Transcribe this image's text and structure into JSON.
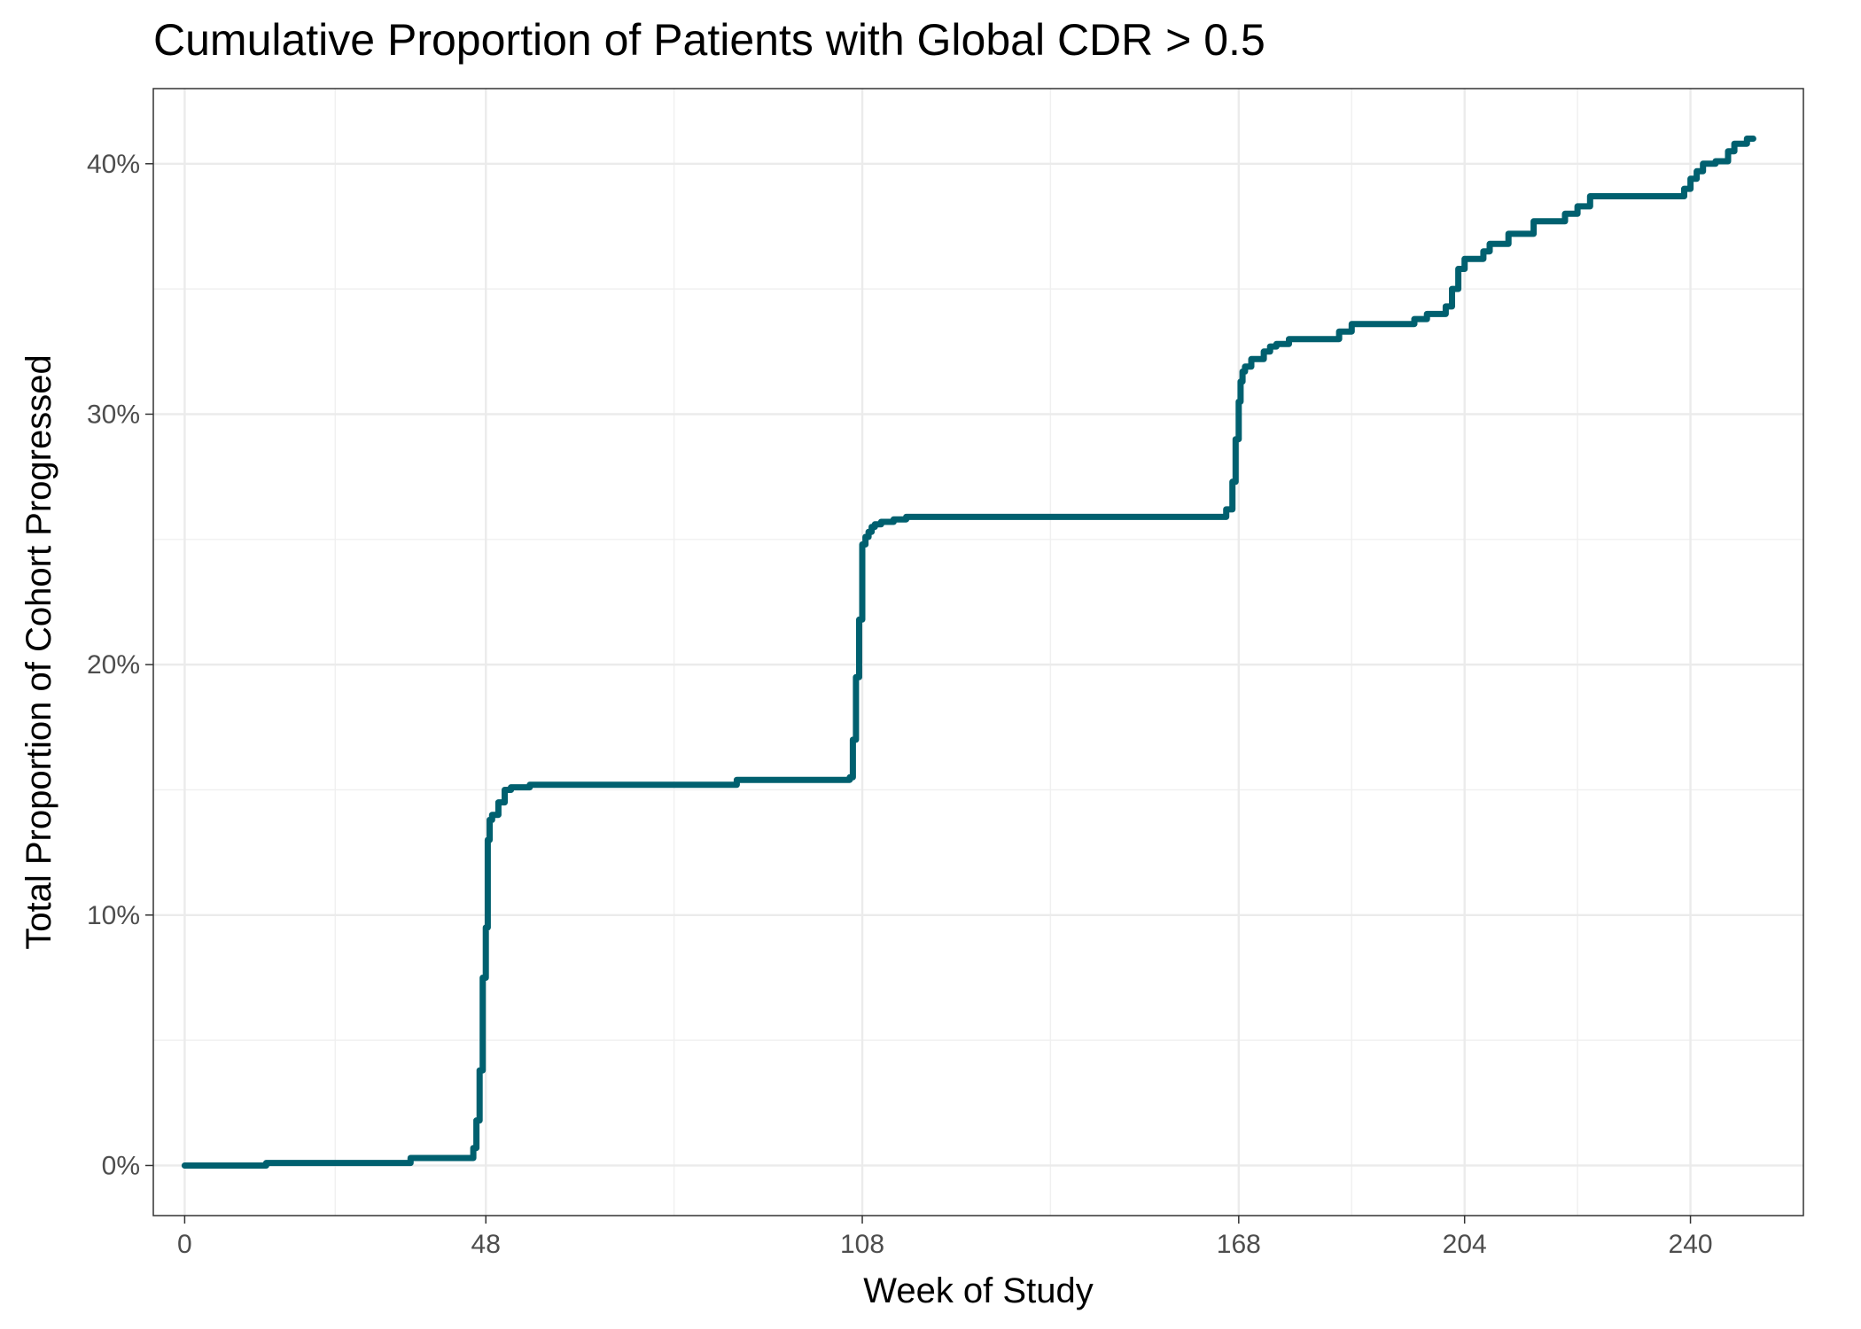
{
  "chart_data": {
    "type": "line",
    "title": "Cumulative Proportion of Patients with Global CDR > 0.5",
    "xlabel": "Week of Study",
    "ylabel": "Total Proportion of Cohort Progressed",
    "xlim": [
      -5,
      258
    ],
    "ylim": [
      -2,
      43
    ],
    "x_ticks": [
      0,
      48,
      108,
      168,
      204,
      240
    ],
    "x_minor_ticks": [
      24,
      78,
      138,
      186,
      222
    ],
    "y_ticks": [
      0,
      10,
      20,
      30,
      40
    ],
    "y_tick_labels": [
      "0%",
      "10%",
      "20%",
      "30%",
      "40%"
    ],
    "grid": true,
    "line_color": "#00606F",
    "series": [
      {
        "step": true,
        "x": [
          0,
          13,
          36,
          46,
          46.5,
          47,
          47.5,
          48,
          48.3,
          48.6,
          49,
          50,
          51,
          52,
          55,
          88,
          106,
          106.5,
          107,
          107.5,
          108,
          108.5,
          109,
          109.5,
          110,
          111,
          113,
          115,
          166,
          167,
          167.5,
          168,
          168.3,
          168.6,
          169,
          170,
          172,
          173,
          174,
          176,
          178,
          184,
          186,
          196,
          198,
          201,
          202,
          203,
          204,
          207,
          208,
          211,
          215,
          220,
          222,
          224,
          239,
          240,
          241,
          242,
          244,
          246,
          247,
          249,
          250
        ],
        "y": [
          0,
          0.1,
          0.3,
          0.7,
          1.8,
          3.8,
          7.5,
          9.5,
          13,
          13.8,
          14,
          14.5,
          15,
          15.1,
          15.2,
          15.4,
          15.5,
          17,
          19.5,
          21.8,
          24.8,
          25.1,
          25.3,
          25.5,
          25.6,
          25.7,
          25.8,
          25.9,
          26.2,
          27.3,
          29,
          30.5,
          31.3,
          31.7,
          31.9,
          32.2,
          32.5,
          32.7,
          32.8,
          33.0,
          33.0,
          33.3,
          33.6,
          33.8,
          34.0,
          34.3,
          35.0,
          35.8,
          36.2,
          36.5,
          36.8,
          37.2,
          37.7,
          38.0,
          38.3,
          38.7,
          39.0,
          39.4,
          39.7,
          40.0,
          40.1,
          40.5,
          40.8,
          41.0,
          41.0
        ]
      }
    ]
  }
}
